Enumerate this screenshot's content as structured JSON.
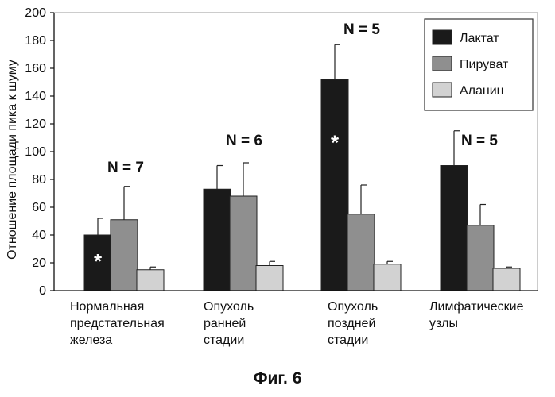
{
  "chart_data": {
    "type": "bar",
    "ylabel": "Отношение площади пика к шуму",
    "ylim": [
      0,
      200
    ],
    "yticks": [
      "0",
      "20",
      "40",
      "60",
      "80",
      "100",
      "120",
      "140",
      "160",
      "180",
      "200"
    ],
    "categories": [
      [
        "Нормальная",
        "предстательная",
        "железа"
      ],
      [
        "Опухоль",
        "ранней",
        "стадии"
      ],
      [
        "Опухоль",
        "поздней",
        "стадии"
      ],
      [
        "Лимфатические",
        "узлы"
      ]
    ],
    "n_labels": [
      "N = 7",
      "N = 6",
      "N = 5",
      "N = 5"
    ],
    "series": [
      {
        "name": "Лактат",
        "color": "#1a1a1a",
        "values": [
          40,
          73,
          152,
          90
        ],
        "errors": [
          12,
          17,
          25,
          25
        ]
      },
      {
        "name": "Пируват",
        "color": "#8f8f8f",
        "values": [
          51,
          68,
          55,
          47
        ],
        "errors": [
          24,
          24,
          21,
          15
        ]
      },
      {
        "name": "Аланин",
        "color": "#d2d2d2",
        "values": [
          15,
          18,
          19,
          16
        ],
        "errors": [
          2,
          3,
          2,
          1
        ]
      }
    ],
    "significance_marks": [
      {
        "series": 0,
        "category": 0,
        "symbol": "*"
      },
      {
        "series": 0,
        "category": 2,
        "symbol": "*"
      }
    ],
    "grid": false,
    "legend": "top-right"
  },
  "caption": "Фиг. 6"
}
